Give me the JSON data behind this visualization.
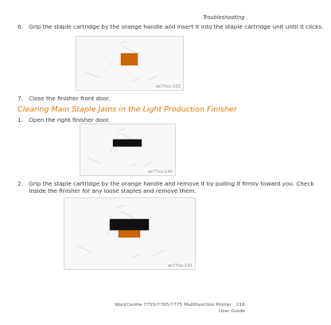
{
  "background_color": "#ffffff",
  "top_right_label": "Troubleshooting",
  "step6_text": "6.  Grip the staple cartridge by the orange handle and insert it into the staple cartridge unit until it clicks.",
  "step7_text": "7.  Close the finisher front door.",
  "section_title": "Clearing Main Staple Jams in the Light Production Finisher",
  "step1_text": "1.  Open the right finisher door.",
  "step2_line1": "2.  Grip the staple cartridge by the orange handle and remove it by pulling it firmly toward you. Check",
  "step2_line2": "    inside the finisher for any loose staples and remove them.",
  "footer_line1": "WorkCentre 7755/7765/7775 Multifunction Printer 216",
  "footer_line2": "User Guide",
  "img1_label": "wc77xx-102",
  "img2_label": "wc77xx-140",
  "img3_label": "wc77xx-141",
  "section_color": "#e8760a",
  "text_color": "#3a3a3a",
  "label_color": "#888888",
  "footer_color": "#555555",
  "img_border_color": "#bbbbbb",
  "img_bg_color": "#f8f8f8",
  "font_size_body": 5.2,
  "font_size_title": 6.8,
  "font_size_top": 4.8,
  "font_size_footer": 4.2,
  "font_size_label": 3.8
}
